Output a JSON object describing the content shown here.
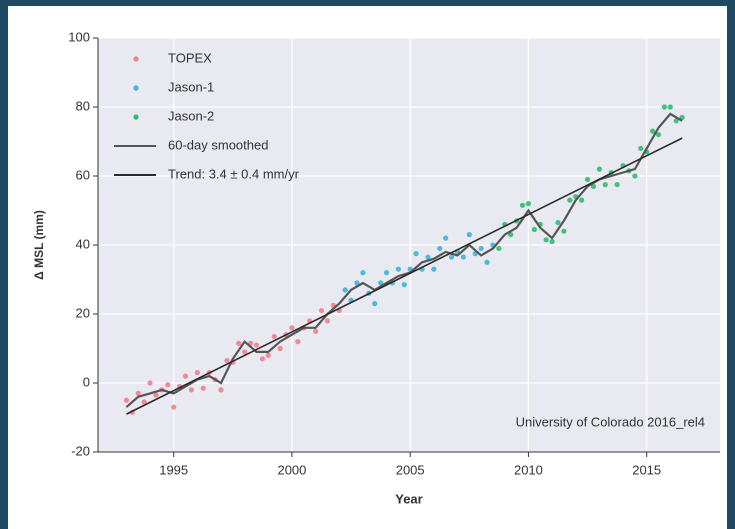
{
  "chart_data": {
    "type": "scatter",
    "xlabel": "Year",
    "ylabel": "Δ MSL (mm)",
    "annotation": "University of Colorado 2016_rel4",
    "xlim": [
      1991.8,
      2018.1
    ],
    "ylim": [
      -20,
      100
    ],
    "xticks": [
      1995,
      2000,
      2005,
      2010,
      2015
    ],
    "yticks": [
      -20,
      0,
      20,
      40,
      60,
      80,
      100
    ],
    "grid": true,
    "legend": "upper left",
    "series": [
      {
        "name": "TOPEX",
        "type": "scatter",
        "color": "#f47e8a",
        "x": [
          1993,
          1993.25,
          1993.5,
          1993.75,
          1994,
          1994.25,
          1994.5,
          1994.75,
          1995,
          1995.25,
          1995.5,
          1995.75,
          1996,
          1996.25,
          1996.5,
          1996.75,
          1997,
          1997.25,
          1997.5,
          1997.75,
          1998,
          1998.25,
          1998.5,
          1998.75,
          1999,
          1999.25,
          1999.5,
          1999.75,
          2000,
          2000.25,
          2000.5,
          2000.75,
          2001,
          2001.25,
          2001.5,
          2001.75,
          2002
        ],
        "values": [
          -5,
          -8.5,
          -3,
          -5.5,
          0,
          -3.5,
          -2,
          -0.5,
          -7,
          -1,
          2,
          -2,
          3,
          -1.5,
          3,
          1,
          -2,
          6.5,
          6,
          11.5,
          9,
          11.5,
          11,
          7,
          8,
          13.5,
          10,
          14,
          16,
          12,
          16,
          18,
          15,
          21,
          18,
          22.5,
          21
        ]
      },
      {
        "name": "Jason-1",
        "type": "scatter",
        "color": "#3db4d8",
        "x": [
          2002.25,
          2002.5,
          2002.75,
          2003,
          2003.25,
          2003.5,
          2003.75,
          2004,
          2004.25,
          2004.5,
          2004.75,
          2005,
          2005.25,
          2005.5,
          2005.75,
          2006,
          2006.25,
          2006.5,
          2006.75,
          2007,
          2007.25,
          2007.5,
          2007.75,
          2008,
          2008.25,
          2008.5
        ],
        "values": [
          27,
          24,
          29,
          32,
          26,
          23,
          29,
          32,
          29,
          33,
          28.5,
          33,
          37.5,
          33,
          36.5,
          33,
          39,
          42,
          36.5,
          38,
          36.5,
          43,
          37.5,
          39,
          35,
          40
        ]
      },
      {
        "name": "Jason-2",
        "type": "scatter",
        "color": "#2fbd6f",
        "x": [
          2008.75,
          2009,
          2009.25,
          2009.5,
          2009.75,
          2010,
          2010.25,
          2010.5,
          2010.75,
          2011,
          2011.25,
          2011.5,
          2011.75,
          2012,
          2012.25,
          2012.5,
          2012.75,
          2013,
          2013.25,
          2013.5,
          2013.75,
          2014,
          2014.25,
          2014.5,
          2014.75,
          2015,
          2015.25,
          2015.5,
          2015.75,
          2016,
          2016.25,
          2016.5
        ],
        "values": [
          39,
          46,
          43,
          47,
          51.5,
          52,
          44.5,
          46,
          41.5,
          41,
          46.5,
          44,
          53,
          54,
          53,
          59,
          57,
          62,
          57.5,
          61,
          57.5,
          63,
          61.5,
          60,
          68,
          67,
          73,
          72,
          80,
          80,
          76,
          77
        ]
      },
      {
        "name": "60-day smoothed",
        "type": "line",
        "color": "#555555",
        "x": [
          1993,
          1993.5,
          1994,
          1994.5,
          1995,
          1995.5,
          1996,
          1996.5,
          1997,
          1997.5,
          1998,
          1998.5,
          1999,
          1999.5,
          2000,
          2000.5,
          2001,
          2001.5,
          2002,
          2002.5,
          2003,
          2003.5,
          2004,
          2004.5,
          2005,
          2005.5,
          2006,
          2006.5,
          2007,
          2007.5,
          2008,
          2008.5,
          2009,
          2009.5,
          2010,
          2010.5,
          2011,
          2011.5,
          2012,
          2012.5,
          2013,
          2013.5,
          2014,
          2014.5,
          2015,
          2015.5,
          2016,
          2016.5
        ],
        "values": [
          -7,
          -4,
          -3,
          -2,
          -3,
          -1,
          1,
          2,
          0,
          7,
          12,
          9,
          9,
          12,
          14,
          16,
          16,
          20,
          23,
          27,
          29,
          27,
          29,
          31,
          32,
          35,
          36,
          38,
          37,
          40,
          37,
          39,
          43,
          45,
          50,
          45,
          42,
          47,
          53,
          57,
          59,
          60,
          61,
          62,
          68,
          74,
          78,
          76
        ]
      },
      {
        "name": "Trend: 3.4 ± 0.4 mm/yr",
        "type": "line",
        "color": "#2b2b2b",
        "x": [
          1993,
          2016.5
        ],
        "values": [
          -9,
          71
        ]
      }
    ]
  }
}
